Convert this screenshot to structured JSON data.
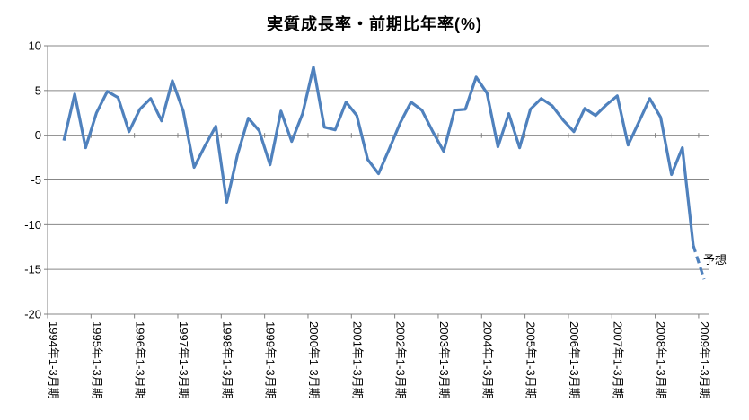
{
  "chart_data": {
    "type": "line",
    "title": "実質成長率・前期比年率(%)",
    "ylabel": "",
    "xlabel": "",
    "ylim": [
      -20,
      10
    ],
    "yticks": [
      10,
      5,
      0,
      -5,
      -10,
      -15,
      -20
    ],
    "grid": true,
    "line_color": "#4F81BD",
    "grid_color": "#878787",
    "axis_color": "#808080",
    "text_color": "#000000",
    "x_labels": [
      "1994年1-3月期",
      "1995年1-3月期",
      "1996年1-3月期",
      "1997年1-3月期",
      "1998年1-3月期",
      "1999年1-3月期",
      "2000年1-3月期",
      "2001年1-3月期",
      "2002年1-3月期",
      "2003年1-3月期",
      "2004年1-3月期",
      "2005年1-3月期",
      "2006年1-3月期",
      "2007年1-3月期",
      "2008年1-3月期",
      "2009年1-3月期"
    ],
    "x_label_step": 4,
    "num_categories": 61,
    "values": [
      null,
      -0.6,
      4.6,
      -1.4,
      2.5,
      4.9,
      4.2,
      0.4,
      2.9,
      4.1,
      1.6,
      6.1,
      2.7,
      -3.6,
      -1.2,
      1.0,
      -7.5,
      -2.2,
      1.9,
      0.5,
      -3.3,
      2.7,
      -0.7,
      2.4,
      7.6,
      0.9,
      0.6,
      3.7,
      2.2,
      -2.7,
      -4.3,
      -1.5,
      1.4,
      3.7,
      2.8,
      0.4,
      -1.8,
      2.8,
      2.9,
      6.5,
      4.7,
      -1.3,
      2.4,
      -1.4,
      2.9,
      4.1,
      3.3,
      1.7,
      0.4,
      3.0,
      2.2,
      3.4,
      4.4,
      -1.1,
      1.5,
      4.1,
      2.0,
      -4.4,
      -1.4,
      -12.3,
      -16.1
    ],
    "forecast": {
      "label": "予想",
      "dashed_from_index": 59
    }
  }
}
